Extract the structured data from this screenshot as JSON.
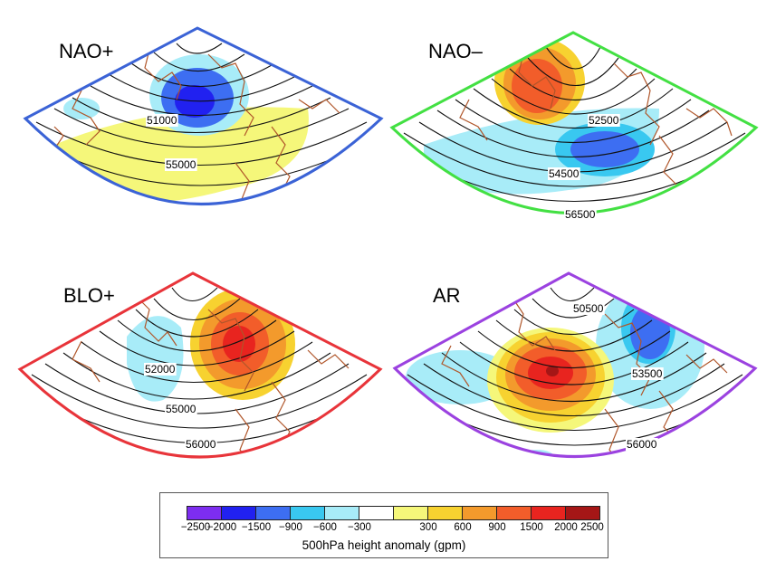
{
  "colors": {
    "coastline": "#b0562a",
    "contour": "#111111",
    "neg_2500": "#7d2df0",
    "neg_2000": "#2121f0",
    "neg_1500": "#3d6ef2",
    "neg_900": "#39c8f0",
    "neg_600": "#a8ecf8",
    "neutral": "#ffffff",
    "pos_300": "#f5f77a",
    "pos_600": "#f7d230",
    "pos_900": "#f39a2c",
    "pos_1500": "#f25d2a",
    "pos_2000": "#e8241f",
    "pos_2500": "#a51616"
  },
  "panels": [
    {
      "title": "NAO+",
      "border_color": "#3b63d6",
      "contour_labels": [
        "51000",
        "55000"
      ]
    },
    {
      "title": "NAO–",
      "border_color": "#43e043",
      "contour_labels": [
        "52500",
        "54500",
        "56500"
      ]
    },
    {
      "title": "BLO+",
      "border_color": "#e8343a",
      "contour_labels": [
        "52000",
        "55000",
        "56000"
      ]
    },
    {
      "title": "AR",
      "border_color": "#9b42e0",
      "contour_labels": [
        "50500",
        "53500",
        "56000"
      ]
    }
  ],
  "legend": {
    "title": "500hPa height anomaly (gpm)",
    "tick_labels": [
      "−2500",
      "−2000",
      "−1500",
      "−900",
      "−600",
      "−300",
      "300",
      "600",
      "900",
      "1500",
      "2000",
      "2500"
    ],
    "swatch_colors": [
      "#7d2df0",
      "#2121f0",
      "#3d6ef2",
      "#39c8f0",
      "#a8ecf8",
      "#ffffff",
      "#f5f77a",
      "#f7d230",
      "#f39a2c",
      "#f25d2a",
      "#e8241f",
      "#a51616"
    ]
  }
}
